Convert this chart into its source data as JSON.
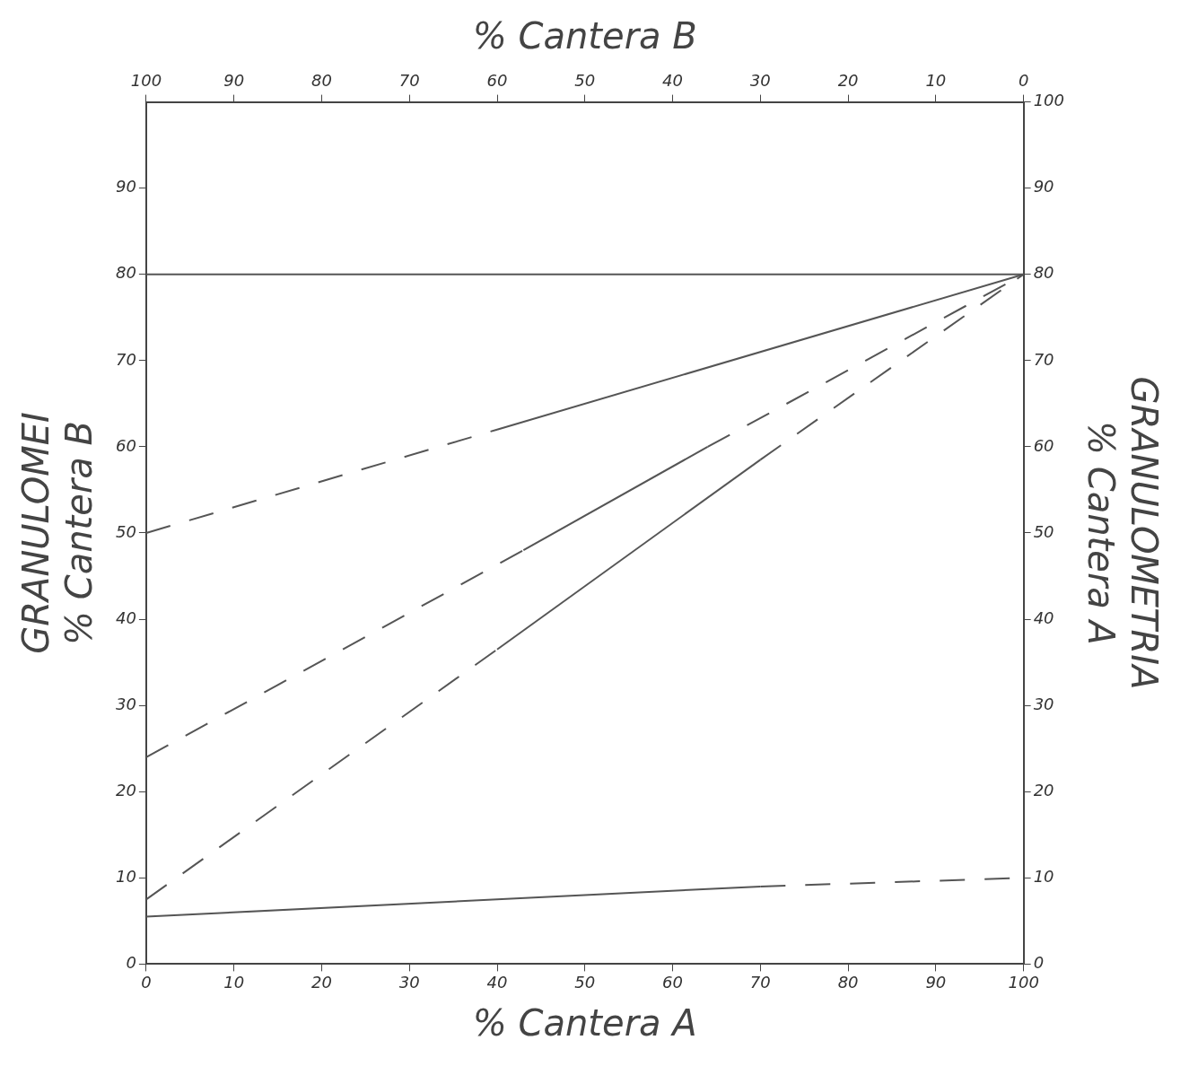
{
  "chart_data": {
    "type": "line",
    "xlabel": "% Cantera A",
    "ylabel": "GRANULOMEI\n% Cantera B",
    "y2label": "GRANULOMETRIA\n% Cantera A",
    "x2label": "% Cantera B",
    "xlim": [
      0,
      100
    ],
    "xticks": [
      0,
      10,
      20,
      30,
      40,
      50,
      60,
      70,
      80,
      90,
      100
    ],
    "x2lim": [
      100,
      0
    ],
    "x2ticks": [
      100,
      90,
      80,
      70,
      60,
      50,
      40,
      30,
      20,
      10,
      0
    ],
    "ylim": [
      0,
      100
    ],
    "yticks": [
      0,
      10,
      20,
      30,
      40,
      50,
      60,
      70,
      80,
      90
    ],
    "y2lim": [
      0,
      100
    ],
    "y2ticks": [
      0,
      10,
      20,
      30,
      40,
      50,
      60,
      70,
      80,
      90,
      100
    ],
    "grid": false,
    "legend": false,
    "marker": "none",
    "series": [
      {
        "x": [
          0,
          100
        ],
        "values": [
          80,
          80
        ],
        "line_style": "solid",
        "color": "#555555"
      },
      {
        "x": [
          0,
          40
        ],
        "values": [
          50,
          62
        ],
        "line_style": "dashed",
        "color": "#555555"
      },
      {
        "x": [
          40,
          100
        ],
        "values": [
          62,
          80
        ],
        "line_style": "solid",
        "color": "#555555"
      },
      {
        "x": [
          0,
          43
        ],
        "values": [
          24,
          48
        ],
        "line_style": "dashed",
        "color": "#555555"
      },
      {
        "x": [
          43,
          64
        ],
        "values": [
          48,
          60
        ],
        "line_style": "solid",
        "color": "#555555"
      },
      {
        "x": [
          64,
          100
        ],
        "values": [
          60,
          80
        ],
        "line_style": "dashed",
        "color": "#555555"
      },
      {
        "x": [
          0,
          40
        ],
        "values": [
          7.5,
          36.5
        ],
        "line_style": "dashed",
        "color": "#555555"
      },
      {
        "x": [
          40,
          70
        ],
        "values": [
          36.5,
          58.5
        ],
        "line_style": "solid",
        "color": "#555555"
      },
      {
        "x": [
          70,
          100
        ],
        "values": [
          58.5,
          80
        ],
        "line_style": "dashed",
        "color": "#555555"
      },
      {
        "x": [
          0,
          70
        ],
        "values": [
          5.5,
          9
        ],
        "line_style": "solid",
        "color": "#555555"
      },
      {
        "x": [
          70,
          100
        ],
        "values": [
          9,
          10
        ],
        "line_style": "dashed",
        "color": "#555555"
      }
    ]
  }
}
